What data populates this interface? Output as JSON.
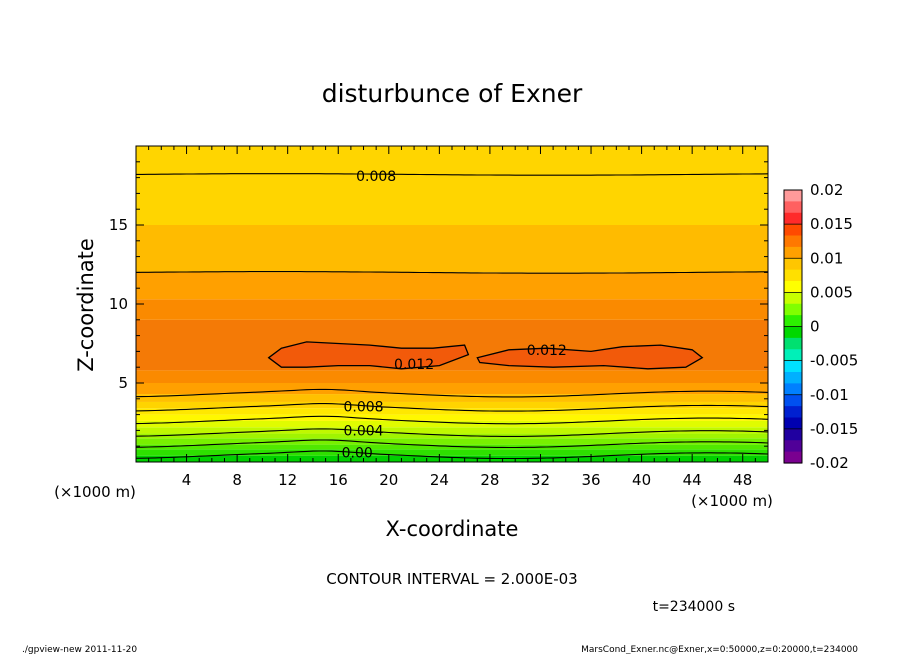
{
  "chart_data": {
    "type": "contour",
    "title": "disturbunce of Exner",
    "xlabel": "X-coordinate",
    "ylabel": "Z-coordinate",
    "x_unit": "(×1000 m)",
    "xlim": [
      0,
      50
    ],
    "ylim": [
      0,
      20
    ],
    "x_ticks": [
      4,
      8,
      12,
      16,
      20,
      24,
      28,
      32,
      36,
      40,
      44,
      48
    ],
    "y_ticks": [
      5,
      10,
      15
    ],
    "colorbar": {
      "tick_labels": [
        "0.02",
        "0.015",
        "0.01",
        "0.005",
        "0",
        "-0.005",
        "-0.01",
        "-0.015",
        "-0.02"
      ],
      "tick_values": [
        0.02,
        0.015,
        0.01,
        0.005,
        0,
        -0.005,
        -0.01,
        -0.015,
        -0.02
      ],
      "min": -0.02,
      "max": 0.02
    },
    "contour_interval_text": "CONTOUR INTERVAL = 2.000E-03",
    "contour_labels": [
      {
        "text": "0.008",
        "x": 19,
        "z": 18.1
      },
      {
        "text": "0.012",
        "x": 22,
        "z": 6.2
      },
      {
        "text": "0.012",
        "x": 32.5,
        "z": 7.1
      },
      {
        "text": "0.008",
        "x": 18,
        "z": 3.5
      },
      {
        "text": "0.004",
        "x": 18,
        "z": 2.0
      },
      {
        "text": "0.00",
        "x": 17.5,
        "z": 0.6
      }
    ],
    "contour_lines_z": [
      0.4,
      1.1,
      1.8,
      2.6,
      3.4,
      4.3,
      12.0,
      18.2
    ],
    "bands": [
      {
        "z0": 0.0,
        "z1": 0.4,
        "color": "#00d000"
      },
      {
        "z0": 0.4,
        "z1": 0.8,
        "color": "#2ee000"
      },
      {
        "z0": 0.8,
        "z1": 1.1,
        "color": "#50e800"
      },
      {
        "z0": 1.1,
        "z1": 1.5,
        "color": "#78f000"
      },
      {
        "z0": 1.5,
        "z1": 1.8,
        "color": "#a0f400"
      },
      {
        "z0": 1.8,
        "z1": 2.2,
        "color": "#c0f800"
      },
      {
        "z0": 2.2,
        "z1": 2.6,
        "color": "#e0fc00"
      },
      {
        "z0": 2.6,
        "z1": 3.0,
        "color": "#fff800"
      },
      {
        "z0": 3.0,
        "z1": 3.4,
        "color": "#ffe800"
      },
      {
        "z0": 3.4,
        "z1": 3.8,
        "color": "#ffd400"
      },
      {
        "z0": 3.8,
        "z1": 4.3,
        "color": "#ffc000"
      },
      {
        "z0": 4.3,
        "z1": 5.0,
        "color": "#ffa000"
      },
      {
        "z0": 5.0,
        "z1": 5.8,
        "color": "#fa8a00"
      },
      {
        "z0": 5.8,
        "z1": 9.0,
        "color": "#f47a06"
      },
      {
        "z0": 9.0,
        "z1": 10.3,
        "color": "#fa8a00"
      },
      {
        "z0": 10.3,
        "z1": 12.0,
        "color": "#ffa000"
      },
      {
        "z0": 12.0,
        "z1": 15.0,
        "color": "#ffbb00"
      },
      {
        "z0": 15.0,
        "z1": 20.0,
        "color": "#ffd500"
      }
    ],
    "blobs": [
      {
        "points": [
          [
            10.5,
            6.6
          ],
          [
            11.5,
            7.2
          ],
          [
            13.5,
            7.6
          ],
          [
            16,
            7.5
          ],
          [
            18.5,
            7.4
          ],
          [
            21,
            7.2
          ],
          [
            23.5,
            7.2
          ],
          [
            26,
            7.4
          ],
          [
            26.3,
            6.8
          ],
          [
            24,
            6.1
          ],
          [
            21,
            5.9
          ],
          [
            18.5,
            6.1
          ],
          [
            16,
            6.1
          ],
          [
            13.5,
            6.0
          ],
          [
            11.5,
            6.0
          ]
        ],
        "color": "#f25a0a"
      },
      {
        "points": [
          [
            27,
            6.6
          ],
          [
            29.5,
            7.1
          ],
          [
            32.5,
            7.2
          ],
          [
            36,
            7.0
          ],
          [
            38.5,
            7.3
          ],
          [
            41.5,
            7.4
          ],
          [
            44,
            7.1
          ],
          [
            44.8,
            6.6
          ],
          [
            43.5,
            6.0
          ],
          [
            40.5,
            5.9
          ],
          [
            37,
            6.1
          ],
          [
            33,
            6.0
          ],
          [
            29.5,
            6.1
          ],
          [
            27.2,
            6.3
          ]
        ],
        "color": "#f25a0a"
      }
    ]
  },
  "info": {
    "time": "t=234000 s",
    "footer_left": "./gpview-new   2011-11-20",
    "footer_right": "MarsCond_Exner.nc@Exner,x=0:50000,z=0:20000,t=234000"
  }
}
